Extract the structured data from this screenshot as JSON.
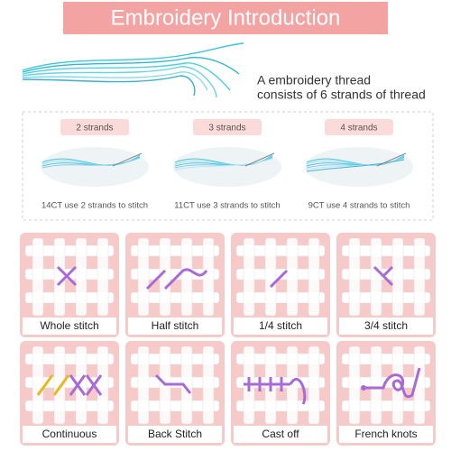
{
  "header": {
    "title": "Embroidery Introduction"
  },
  "intro": {
    "lines": [
      "A embroidery thread",
      "consists of 6 strands of thread"
    ]
  },
  "strands": [
    {
      "label": "2 strands",
      "caption": "14CT use 2 strands to stitch"
    },
    {
      "label": "3 strands",
      "caption": "11CT use 3 strands to stitch"
    },
    {
      "label": "4 strands",
      "caption": "9CT use 4 strands to stitch"
    }
  ],
  "stitches": [
    "Whole stitch",
    "Half stitch",
    "1/4 stitch",
    "3/4 stitch",
    "Continuous",
    "Back Stitch",
    "Cast off",
    "French knots"
  ]
}
